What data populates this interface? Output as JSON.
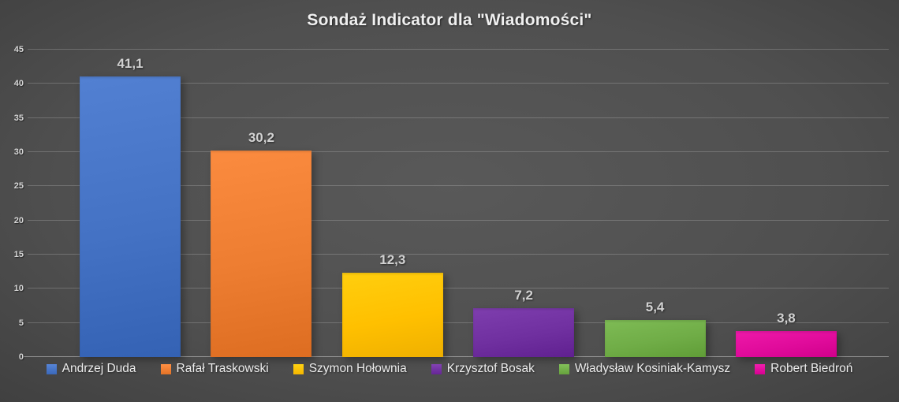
{
  "title": "Sondaż Indicator dla \"Wiadomości\"",
  "chart_data": {
    "type": "bar",
    "title": "Sondaż Indicator dla \"Wiadomości\"",
    "categories": [
      "Andrzej Duda",
      "Rafał Traskowski",
      "Szymon Hołownia",
      "Krzysztof Bosak",
      "Władysław Kosiniak-Kamysz",
      "Robert Biedroń"
    ],
    "values": [
      41.1,
      30.2,
      12.3,
      7.2,
      5.4,
      3.8
    ],
    "value_labels": [
      "41,1",
      "30,2",
      "12,3",
      "7,2",
      "5,4",
      "3,8"
    ],
    "bar_colors": [
      "#4472C4",
      "#ED7D31",
      "#FFC000",
      "#7030A0",
      "#70AD47",
      "#E00B9B"
    ],
    "xlabel": "",
    "ylabel": "",
    "ylim": [
      0,
      45
    ],
    "yticks": [
      0,
      5,
      10,
      15,
      20,
      25,
      30,
      35,
      40,
      45
    ],
    "grid": true,
    "legend_position": "bottom",
    "decimal_separator": ","
  },
  "colors": {
    "background_center": "#595959",
    "background_edge": "#242424",
    "gridline": "rgba(255,255,255,0.20)",
    "axis_line": "rgba(255,255,255,0.42)",
    "title_text": "#F0F0F0",
    "tick_label_text": "#D6D6D6",
    "value_label_text": "#D2D2D2",
    "legend_text": "#ECECEC"
  }
}
